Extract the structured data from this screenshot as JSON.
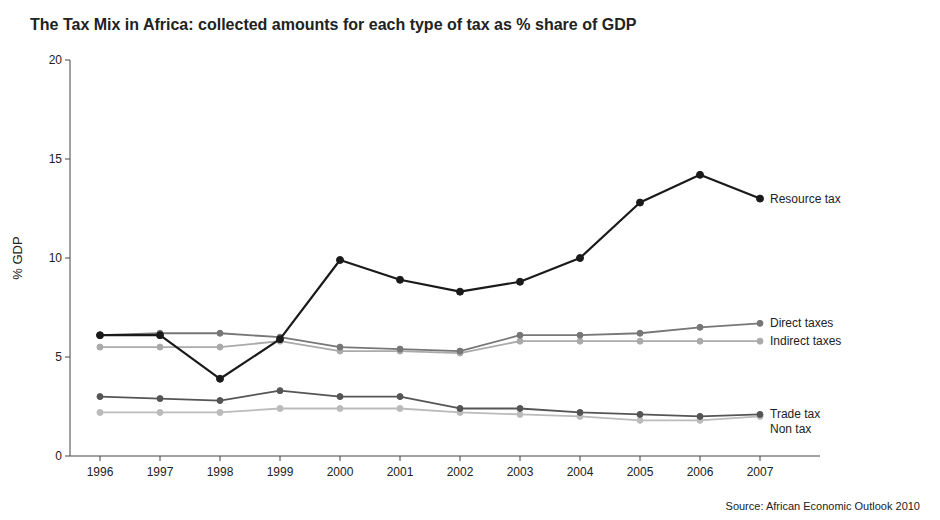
{
  "chart_data": {
    "type": "line",
    "title": "The Tax Mix in Africa: collected amounts for each type of tax as % share of GDP",
    "ylabel": "% GDP",
    "source": "Source: African Economic Outlook 2010",
    "x": [
      1996,
      1997,
      1998,
      1999,
      2000,
      2001,
      2002,
      2003,
      2004,
      2005,
      2006,
      2007
    ],
    "series": [
      {
        "name": "Resource tax",
        "color": "#1a1a1a",
        "marker": "circle",
        "values": [
          6.1,
          6.1,
          3.9,
          5.9,
          9.9,
          8.9,
          8.3,
          8.8,
          10.0,
          12.8,
          14.2,
          13.0
        ]
      },
      {
        "name": "Direct taxes",
        "color": "#777777",
        "marker": "circle",
        "values": [
          6.1,
          6.2,
          6.2,
          6.0,
          5.5,
          5.4,
          5.3,
          6.1,
          6.1,
          6.2,
          6.5,
          6.7
        ]
      },
      {
        "name": "Indirect taxes",
        "color": "#aaaaaa",
        "marker": "circle",
        "values": [
          5.5,
          5.5,
          5.5,
          5.8,
          5.3,
          5.3,
          5.2,
          5.8,
          5.8,
          5.8,
          5.8,
          5.8
        ]
      },
      {
        "name": "Trade tax",
        "color": "#555555",
        "marker": "circle",
        "values": [
          3.0,
          2.9,
          2.8,
          3.3,
          3.0,
          3.0,
          2.4,
          2.4,
          2.2,
          2.1,
          2.0,
          2.1
        ]
      },
      {
        "name": "Non tax",
        "color": "#bbbbbb",
        "marker": "circle",
        "values": [
          2.2,
          2.2,
          2.2,
          2.4,
          2.4,
          2.4,
          2.2,
          2.1,
          2.0,
          1.8,
          1.8,
          2.0
        ]
      }
    ],
    "xlim": [
      1995.5,
      2008.0
    ],
    "xticks": [
      1996,
      1997,
      1998,
      1999,
      2000,
      2001,
      2002,
      2003,
      2004,
      2005,
      2006,
      2007
    ],
    "ylim": [
      0,
      20
    ],
    "yticks": [
      0,
      5,
      10,
      15,
      20
    ],
    "grid": false
  }
}
